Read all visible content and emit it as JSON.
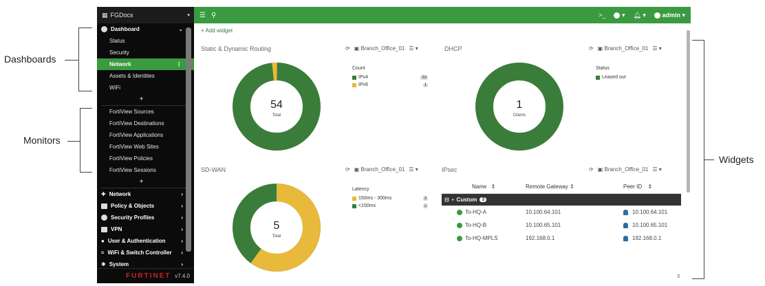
{
  "annotations": {
    "dashboards": "Dashboards",
    "monitors": "Monitors",
    "widgets": "Widgets"
  },
  "sidebar": {
    "device": "FGDocs",
    "dashboard_label": "Dashboard",
    "dashboard_items": [
      "Status",
      "Security",
      "Network",
      "Assets & Identities",
      "WiFi"
    ],
    "active_item": "Network",
    "monitor_items": [
      "FortiView Sources",
      "FortiView Destinations",
      "FortiView Applications",
      "FortiView Web Sites",
      "FortiView Policies",
      "FortiView Sessions"
    ],
    "plus": "+",
    "menu": [
      "Network",
      "Policy & Objects",
      "Security Profiles",
      "VPN",
      "User & Authentication",
      "WiFi & Switch Controller",
      "System"
    ],
    "logo": "FURTINET",
    "version": "v7.4.0"
  },
  "topbar": {
    "user": "admin"
  },
  "content": {
    "add_widget": "Add widget",
    "page": "3"
  },
  "widgets": {
    "routing": {
      "title": "Static & Dynamic Routing",
      "device": "Branch_Office_01",
      "legend_title": "Count",
      "legend": [
        {
          "label": "IPv4",
          "count": "53",
          "color": "#3a7d3a"
        },
        {
          "label": "IPv6",
          "count": "1",
          "color": "#e8b93a"
        }
      ],
      "total": "54",
      "total_label": "Total"
    },
    "dhcp": {
      "title": "DHCP",
      "device": "Branch_Office_01",
      "legend_title": "Status",
      "legend": [
        {
          "label": "Leased out",
          "count": "1",
          "color": "#3a7d3a"
        }
      ],
      "total": "1",
      "total_label": "Clients"
    },
    "sdwan": {
      "title": "SD-WAN",
      "device": "Branch_Office_01",
      "legend_title": "Latency",
      "legend": [
        {
          "label": "150ms - 300ms",
          "count": "3",
          "color": "#e8b93a"
        },
        {
          "label": "<150ms",
          "count": "2",
          "color": "#3a7d3a"
        }
      ],
      "total": "5",
      "total_label": "Total"
    },
    "ipsec": {
      "title": "IPsec",
      "device": "Branch_Office_01",
      "columns": [
        "Name",
        "Remote Gateway",
        "Peer ID"
      ],
      "group": "Custom",
      "group_count": "3",
      "rows": [
        {
          "name": "To-HQ-A",
          "gateway": "10.100.64.101",
          "peer": "10.100.64.101"
        },
        {
          "name": "To-HQ-B",
          "gateway": "10.100.65.101",
          "peer": "10.100.65.101"
        },
        {
          "name": "To-HQ-MPLS",
          "gateway": "192.168.0.1",
          "peer": "192.168.0.1"
        }
      ]
    }
  }
}
